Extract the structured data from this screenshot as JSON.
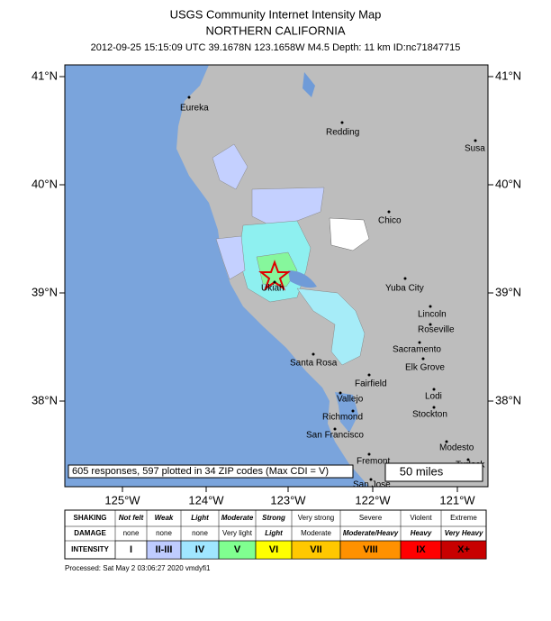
{
  "header": {
    "title": "USGS Community Internet Intensity Map",
    "region": "NORTHERN CALIFORNIA",
    "event": "2012-09-25 15:15:09 UTC 39.1678N 123.1658W M4.5 Depth: 11 km ID:nc71847715"
  },
  "map": {
    "lat_labels": [
      "41°N",
      "40°N",
      "39°N",
      "38°N"
    ],
    "lon_labels": [
      "125°W",
      "124°W",
      "123°W",
      "122°W",
      "121°W"
    ],
    "cities": [
      "Eureka",
      "Redding",
      "Susa",
      "Chico",
      "Yuba City",
      "Ukiah",
      "Lincoln",
      "Roseville",
      "Sacramento",
      "Elk Grove",
      "Santa Rosa",
      "Fairfield",
      "Vallejo",
      "Lodi",
      "Richmond",
      "Stockton",
      "San Francisco",
      "Modesto",
      "Fremont",
      "Turlock",
      "San Jose"
    ],
    "responses_note": "605 responses, 597 plotted in 34 ZIP codes (Max CDI = V)",
    "scale_label": "50 miles"
  },
  "legend": {
    "row_labels": [
      "SHAKING",
      "DAMAGE",
      "INTENSITY"
    ],
    "shaking": [
      "Not felt",
      "Weak",
      "Light",
      "Moderate",
      "Strong",
      "Very strong",
      "Severe",
      "Violent",
      "Extreme"
    ],
    "damage": [
      "none",
      "none",
      "none",
      "Very light",
      "Light",
      "Moderate",
      "Moderate/Heavy",
      "Heavy",
      "Very Heavy"
    ],
    "intensity": [
      "I",
      "II-III",
      "IV",
      "V",
      "VI",
      "VII",
      "VIII",
      "IX",
      "X+"
    ],
    "colors": [
      "#ffffff",
      "#bfccff",
      "#a0e6ff",
      "#80ff90",
      "#ffff00",
      "#ffc800",
      "#ff9100",
      "#ff0000",
      "#c80000"
    ]
  },
  "footer": "Processed: Sat May  2 03:06:27 2020 vmdyfi1"
}
